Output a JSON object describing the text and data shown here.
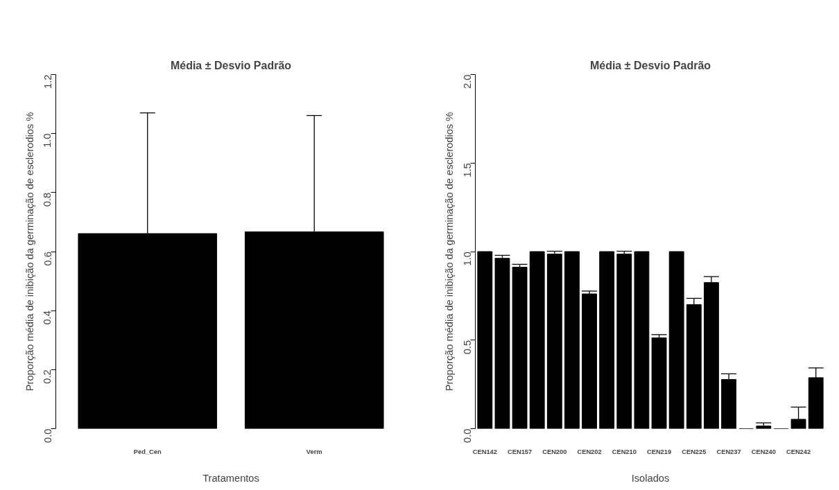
{
  "chart_data": [
    {
      "type": "bar",
      "title": "Média ± Desvio Padrão",
      "xlabel": "Tratamentos",
      "ylabel": "Proporção média de inibição da germinação de esclerodios %",
      "categories": [
        "Ped_Cen",
        "Verm"
      ],
      "values": [
        0.661,
        0.667
      ],
      "color": "#000000",
      "errors": [
        [
          0.661,
          1.07
        ],
        [
          0.667,
          1.061
        ]
      ],
      "ylim": [
        0,
        1.2
      ],
      "yticks": [
        {
          "value": 0,
          "label": "0.0"
        },
        0.2,
        0.4,
        0.6,
        0.8,
        {
          "value": 1,
          "label": "1.0"
        },
        1.2
      ],
      "grid": false
    },
    {
      "type": "bar",
      "title": "Média ± Desvio Padrão",
      "xlabel": "Isolados",
      "ylabel": "Proporção média de inibição da germinação de esclerodios %",
      "categories": [
        "CEN142",
        null,
        "CEN157",
        null,
        "CEN200",
        null,
        "CEN202",
        null,
        "CEN210",
        null,
        "CEN219",
        null,
        "CEN225",
        null,
        "CEN237",
        null,
        "CEN240",
        null,
        "CEN242",
        null
      ],
      "values": [
        1.0,
        0.962,
        0.912,
        1.0,
        0.986,
        1.0,
        0.761,
        1.0,
        0.986,
        1.0,
        0.513,
        1.0,
        0.701,
        0.825,
        0.278,
        0,
        0.015,
        0,
        0.053,
        0.288
      ],
      "color": "#000000",
      "errors": [
        null,
        [
          0.962,
          0.979
        ],
        [
          0.912,
          0.928
        ],
        null,
        [
          0.986,
          1.002
        ],
        null,
        [
          0.761,
          0.777
        ],
        null,
        [
          0.986,
          1.002
        ],
        null,
        [
          0.513,
          0.531
        ],
        null,
        [
          0.701,
          0.736
        ],
        [
          0.825,
          0.859
        ],
        [
          0.278,
          0.31
        ],
        null,
        [
          0.015,
          0.033
        ],
        null,
        [
          0.053,
          0.122
        ],
        [
          0.288,
          0.343
        ]
      ],
      "ylim": [
        0,
        2.0
      ],
      "yticks": [
        {
          "value": 0,
          "label": "0.0"
        },
        0.5,
        {
          "value": 1,
          "label": "1.0"
        },
        1.5,
        {
          "value": 2,
          "label": "2.0"
        }
      ],
      "grid": false
    }
  ]
}
